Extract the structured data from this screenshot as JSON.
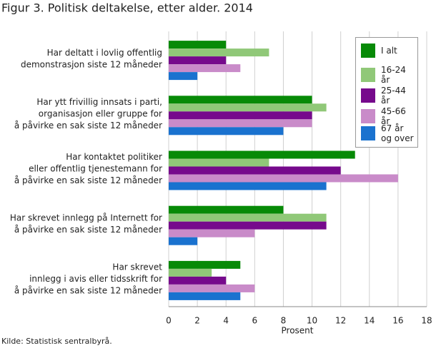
{
  "chart_data": {
    "type": "hbar",
    "title": "Figur 3. Politisk deltakelse, etter alder. 2014",
    "x_label": "Prosent",
    "source": "Kilde: Statistisk sentralbyrå.",
    "categories": [
      [
        "Har deltatt i lovlig offentlig",
        "demonstrasjon siste 12 måneder"
      ],
      [
        "Har ytt frivillig innsats i parti,",
        "organisasjon eller gruppe for",
        "å påvirke en sak siste 12 måneder"
      ],
      [
        "Har kontaktet politiker",
        "eller offentlig tjenestemann for",
        "å påvirke en sak siste 12 måneder"
      ],
      [
        "Har skrevet innlegg på Internett for",
        "å påvirke en sak siste 12 måneder"
      ],
      [
        "Har skrevet",
        "innlegg i avis eller tidsskrift for",
        "å påvirke en sak siste 12 måneder"
      ]
    ],
    "series": [
      {
        "name": "I alt",
        "color": "#078a07",
        "values": [
          4,
          10,
          13,
          8,
          5
        ]
      },
      {
        "name": "16-24 år",
        "color": "#90c878",
        "values": [
          7,
          11,
          7,
          11,
          3
        ]
      },
      {
        "name": "25-44 år",
        "color": "#760a8c",
        "values": [
          4,
          10,
          12,
          11,
          4
        ]
      },
      {
        "name": "45-66 år",
        "color": "#c98bc9",
        "values": [
          5,
          10,
          16,
          6,
          6
        ]
      },
      {
        "name": "67 år og over",
        "color": "#1a72cf",
        "values": [
          2,
          8,
          11,
          2,
          5
        ]
      }
    ],
    "xlim": [
      0,
      18
    ],
    "xticks": [
      0,
      2,
      4,
      6,
      8,
      10,
      12,
      14,
      16,
      18
    ],
    "grid": true,
    "legend": "upper right"
  }
}
